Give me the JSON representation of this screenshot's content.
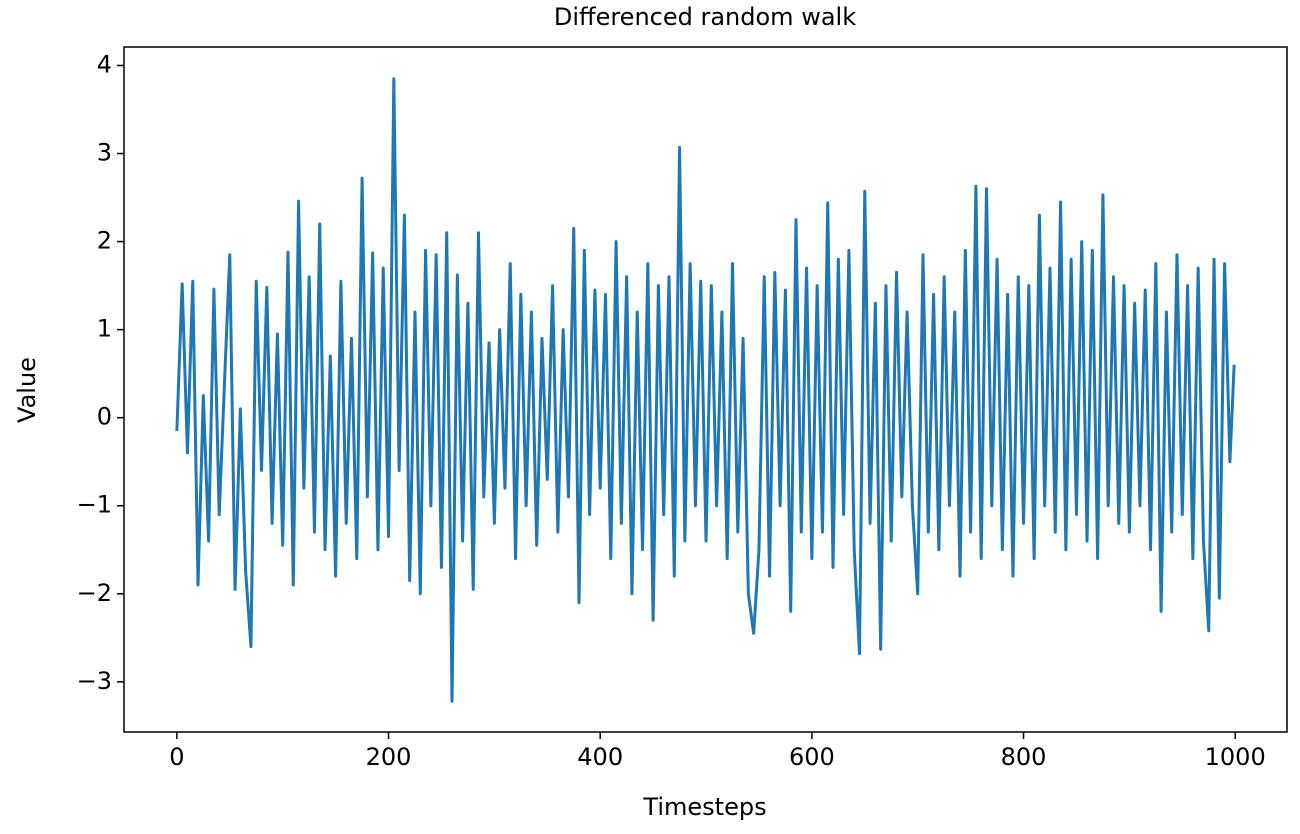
{
  "chart_data": {
    "type": "line",
    "title": "Differenced random walk",
    "x_label": "Timesteps",
    "y_label": "Value",
    "color": "#1f77b4",
    "x": [
      0,
      5,
      10,
      15,
      20,
      25,
      30,
      35,
      40,
      45,
      50,
      55,
      60,
      65,
      70,
      75,
      80,
      85,
      90,
      95,
      100,
      105,
      110,
      115,
      120,
      125,
      130,
      135,
      140,
      145,
      150,
      155,
      160,
      165,
      170,
      175,
      180,
      185,
      190,
      195,
      200,
      205,
      210,
      215,
      220,
      225,
      230,
      235,
      240,
      245,
      250,
      255,
      260,
      265,
      270,
      275,
      280,
      285,
      290,
      295,
      300,
      305,
      310,
      315,
      320,
      325,
      330,
      335,
      340,
      345,
      350,
      355,
      360,
      365,
      370,
      375,
      380,
      385,
      390,
      395,
      400,
      405,
      410,
      415,
      420,
      425,
      430,
      435,
      440,
      445,
      450,
      455,
      460,
      465,
      470,
      475,
      480,
      485,
      490,
      495,
      500,
      505,
      510,
      515,
      520,
      525,
      530,
      535,
      540,
      545,
      550,
      555,
      560,
      565,
      570,
      575,
      580,
      585,
      590,
      595,
      600,
      605,
      610,
      615,
      620,
      625,
      630,
      635,
      640,
      645,
      650,
      655,
      660,
      665,
      670,
      675,
      680,
      685,
      690,
      695,
      700,
      705,
      710,
      715,
      720,
      725,
      730,
      735,
      740,
      745,
      750,
      755,
      760,
      765,
      770,
      775,
      780,
      785,
      790,
      795,
      800,
      805,
      810,
      815,
      820,
      825,
      830,
      835,
      840,
      845,
      850,
      855,
      860,
      865,
      870,
      875,
      880,
      885,
      890,
      895,
      900,
      905,
      910,
      915,
      920,
      925,
      930,
      935,
      940,
      945,
      950,
      955,
      960,
      965,
      970,
      975,
      980,
      985,
      990,
      995,
      999
    ],
    "values": [
      -0.15,
      1.52,
      -0.4,
      1.55,
      -1.9,
      0.25,
      -1.4,
      1.46,
      -1.1,
      0.4,
      1.85,
      -1.95,
      0.1,
      -1.75,
      -2.6,
      1.55,
      -0.6,
      1.48,
      -1.2,
      0.95,
      -1.45,
      1.88,
      -1.9,
      2.46,
      -0.8,
      1.6,
      -1.3,
      2.2,
      -1.5,
      0.7,
      -1.8,
      1.55,
      -1.2,
      0.9,
      -1.6,
      2.72,
      -0.9,
      1.87,
      -1.5,
      1.7,
      -1.35,
      3.85,
      -0.6,
      2.3,
      -1.85,
      1.2,
      -2.0,
      1.9,
      -1.0,
      1.85,
      -1.7,
      2.1,
      -3.22,
      1.62,
      -1.4,
      1.3,
      -1.95,
      2.1,
      -0.9,
      0.85,
      -1.2,
      1.0,
      -0.8,
      1.75,
      -1.6,
      1.4,
      -1.0,
      1.2,
      -1.45,
      0.9,
      -0.7,
      1.5,
      -1.3,
      1.0,
      -0.9,
      2.15,
      -2.1,
      1.9,
      -1.1,
      1.45,
      -0.8,
      1.4,
      -1.6,
      2.0,
      -1.2,
      1.6,
      -2.0,
      1.2,
      -1.5,
      1.75,
      -2.3,
      1.5,
      -1.1,
      1.6,
      -1.8,
      3.07,
      -1.4,
      1.75,
      -1.0,
      1.55,
      -1.4,
      1.5,
      -1.0,
      1.2,
      -1.6,
      1.75,
      -1.3,
      0.9,
      -2.0,
      -2.45,
      -1.5,
      1.6,
      -1.8,
      1.65,
      -1.0,
      1.45,
      -2.2,
      2.25,
      -1.3,
      1.7,
      -1.6,
      1.5,
      -1.3,
      2.44,
      -1.7,
      1.8,
      -1.1,
      1.9,
      -1.5,
      -2.68,
      2.57,
      -1.2,
      1.3,
      -2.63,
      1.5,
      -1.4,
      1.65,
      -0.9,
      1.2,
      -1.0,
      -2.0,
      1.85,
      -1.3,
      1.4,
      -1.5,
      1.6,
      -1.0,
      1.2,
      -1.8,
      1.9,
      -1.3,
      2.63,
      -1.6,
      2.6,
      -1.0,
      1.8,
      -1.5,
      1.4,
      -1.8,
      1.6,
      -1.2,
      1.5,
      -1.6,
      2.3,
      -1.0,
      1.7,
      -1.3,
      2.45,
      -1.5,
      1.8,
      -1.1,
      2.0,
      -1.4,
      1.9,
      -1.6,
      2.53,
      -1.0,
      1.6,
      -1.2,
      1.5,
      -1.3,
      1.3,
      -1.0,
      1.45,
      -1.5,
      1.75,
      -2.2,
      1.2,
      -1.3,
      1.85,
      -1.1,
      1.5,
      -1.6,
      1.7,
      -1.4,
      -2.42,
      1.8,
      -2.05,
      1.75,
      -0.5,
      0.6
    ],
    "xlim": [
      -49.95,
      1048.95
    ],
    "ylim": [
      -3.57,
      4.21
    ],
    "xticks": [
      0,
      200,
      400,
      600,
      800,
      1000
    ],
    "yticks": [
      {
        "value": -3,
        "label": "−3"
      },
      {
        "value": -2,
        "label": "−2"
      },
      {
        "value": -1,
        "label": "−1"
      },
      0,
      1,
      2,
      3,
      4
    ]
  }
}
